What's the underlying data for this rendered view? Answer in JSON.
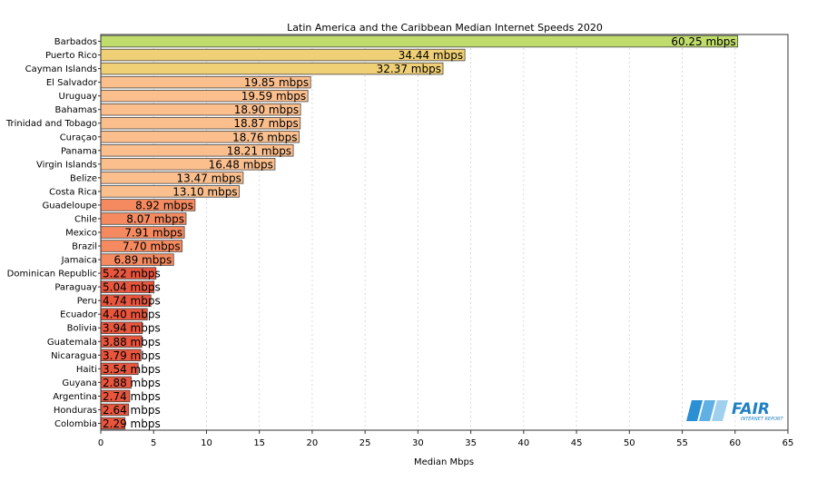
{
  "chart_data": {
    "type": "bar",
    "orientation": "horizontal",
    "title": "Latin America and the Caribbean Median Internet Speeds 2020",
    "xlabel": "Median Mbps",
    "ylabel": "",
    "xlim": [
      0,
      65
    ],
    "xticks": [
      0,
      5,
      10,
      15,
      20,
      25,
      30,
      35,
      40,
      45,
      50,
      55,
      60,
      65
    ],
    "grid": "vertical dotted",
    "value_suffix": " mbps",
    "categories": [
      "Barbados",
      "Puerto Rico",
      "Cayman Islands",
      "El Salvador",
      "Uruguay",
      "Bahamas",
      "Trinidad and Tobago",
      "Curaçao",
      "Panama",
      "Virgin Islands",
      "Belize",
      "Costa Rica",
      "Guadeloupe",
      "Chile",
      "Mexico",
      "Brazil",
      "Jamaica",
      "Dominican Republic",
      "Paraguay",
      "Peru",
      "Ecuador",
      "Bolivia",
      "Guatemala",
      "Nicaragua",
      "Haiti",
      "Guyana",
      "Argentina",
      "Honduras",
      "Colombia"
    ],
    "values": [
      60.25,
      34.44,
      32.37,
      19.85,
      19.59,
      18.9,
      18.87,
      18.76,
      18.21,
      16.48,
      13.47,
      13.1,
      8.92,
      8.07,
      7.91,
      7.7,
      6.89,
      5.22,
      5.04,
      4.74,
      4.4,
      3.94,
      3.88,
      3.79,
      3.54,
      2.88,
      2.74,
      2.64,
      2.29
    ],
    "data_labels": [
      "60.25 mbps",
      "34.44 mbps",
      "32.37 mbps",
      "19.85 mbps",
      "19.59 mbps",
      "18.90 mbps",
      "18.87 mbps",
      "18.76 mbps",
      "18.21 mbps",
      "16.48 mbps",
      "13.47 mbps",
      "13.10 mbps",
      "8.92 mbps",
      "8.07 mbps",
      "7.91 mbps",
      "7.70 mbps",
      "6.89 mbps",
      "5.22 mbps",
      "5.04 mbps",
      "4.74 mbps",
      "4.40 mbps",
      "3.94 mbps",
      "3.88 mbps",
      "3.79 mbps",
      "3.54 mbps",
      "2.88 mbps",
      "2.74 mbps",
      "2.64 mbps",
      "2.29 mbps"
    ],
    "color_scale": [
      "#e8563e",
      "#f58a60",
      "#fbbf8e",
      "#f0d076",
      "#c0dc6c"
    ]
  },
  "logo": {
    "name": "FAIR",
    "subtitle": "INTERNET REPORT"
  },
  "colors": {
    "logo_blue": "#2a8fd3",
    "logo_light": "#9fd0ee"
  }
}
